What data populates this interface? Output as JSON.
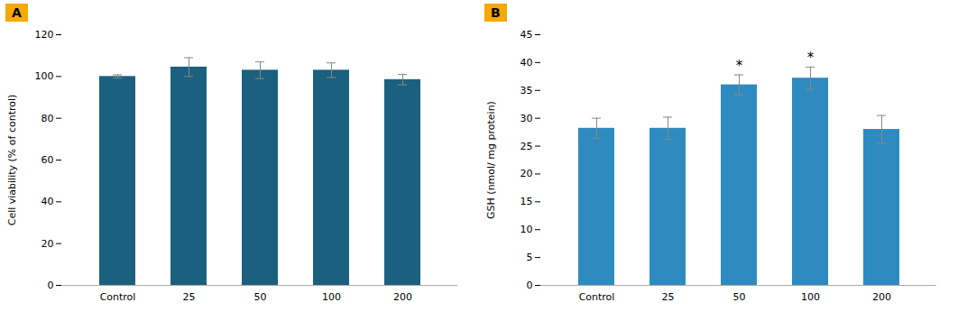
{
  "chart_data": [
    {
      "type": "bar",
      "title": "A",
      "categories": [
        "Control",
        "25",
        "50",
        "100",
        "200"
      ],
      "values": [
        100.0,
        104.5,
        103.0,
        103.0,
        98.5
      ],
      "errors": [
        0.8,
        4.5,
        4.0,
        3.5,
        2.5
      ],
      "color": "#1b607e",
      "y_label": "Cell viability (% of control)",
      "ylim": [
        0,
        120
      ],
      "yticks": [
        0,
        20,
        40,
        60,
        80,
        100,
        120
      ],
      "grid": false,
      "annotations": []
    },
    {
      "type": "bar",
      "title": "B",
      "categories": [
        "Control",
        "25",
        "50",
        "100",
        "200"
      ],
      "values": [
        28.2,
        28.2,
        36.0,
        37.2,
        28.0
      ],
      "errors": [
        1.8,
        2.0,
        1.8,
        2.0,
        2.5
      ],
      "color": "#2e8bc0",
      "y_label": "GSH (nmol/ mg protein)",
      "ylim": [
        0,
        45
      ],
      "yticks": [
        0,
        5,
        10,
        15,
        20,
        25,
        30,
        35,
        40,
        45
      ],
      "grid": false,
      "annotations": [
        {
          "x": "50",
          "text": "*"
        },
        {
          "x": "100",
          "text": "*"
        }
      ]
    }
  ]
}
